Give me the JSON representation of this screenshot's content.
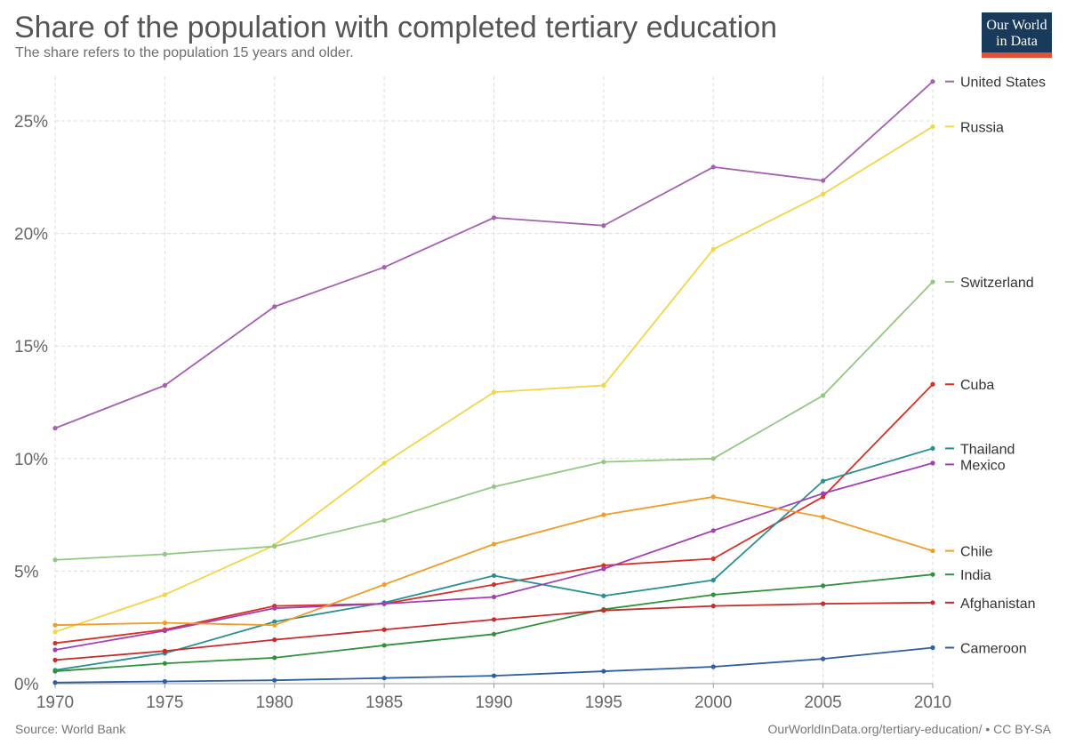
{
  "header": {
    "title": "Share of the population with completed tertiary education",
    "subtitle": "The share refers to the population 15 years and older."
  },
  "logo": {
    "line1": "Our World",
    "line2": "in Data"
  },
  "footer": {
    "source": "Source: World Bank",
    "attribution": "OurWorldInData.org/tertiary-education/ • CC BY-SA"
  },
  "chart_data": {
    "type": "line",
    "title": "Share of the population with completed tertiary education",
    "subtitle": "The share refers to the population 15 years and older.",
    "xlabel": "",
    "ylabel": "",
    "x": [
      1970,
      1975,
      1980,
      1985,
      1990,
      1995,
      2000,
      2005,
      2010
    ],
    "xlim": [
      1970,
      2010
    ],
    "ylim": [
      0,
      27
    ],
    "y_ticks": [
      0,
      5,
      10,
      15,
      20,
      25
    ],
    "y_tick_labels": [
      "0%",
      "5%",
      "10%",
      "15%",
      "20%",
      "25%"
    ],
    "x_tick_labels": [
      "1970",
      "1975",
      "1980",
      "1985",
      "1990",
      "1995",
      "2000",
      "2005",
      "2010"
    ],
    "grid": true,
    "legend": "right",
    "series": [
      {
        "name": "United States",
        "color": "#a561b0",
        "values": [
          11.35,
          13.25,
          16.75,
          18.5,
          20.7,
          20.35,
          22.95,
          22.35,
          26.75
        ]
      },
      {
        "name": "Russia",
        "color": "#f2d649",
        "values": [
          2.3,
          3.95,
          6.15,
          9.8,
          12.95,
          13.25,
          19.3,
          21.75,
          24.75
        ]
      },
      {
        "name": "Switzerland",
        "color": "#90c97f",
        "values": [
          5.5,
          5.75,
          6.1,
          7.25,
          8.75,
          9.85,
          10.0,
          12.8,
          17.85
        ]
      },
      {
        "name": "Cuba",
        "color": "#d73027",
        "values": [
          1.8,
          2.4,
          3.45,
          3.55,
          4.4,
          5.25,
          5.55,
          8.3,
          13.3
        ]
      },
      {
        "name": "Thailand",
        "color": "#2a8f93",
        "values": [
          0.6,
          1.35,
          2.75,
          3.6,
          4.8,
          3.9,
          4.6,
          9.0,
          10.45
        ]
      },
      {
        "name": "Mexico",
        "color": "#a33fb3",
        "values": [
          1.5,
          2.35,
          3.35,
          3.55,
          3.85,
          5.1,
          6.8,
          8.45,
          9.8
        ]
      },
      {
        "name": "Chile",
        "color": "#f09c28",
        "values": [
          2.6,
          2.7,
          2.6,
          4.4,
          6.2,
          7.5,
          8.3,
          7.4,
          5.9
        ]
      },
      {
        "name": "India",
        "color": "#2f9139",
        "values": [
          0.55,
          0.9,
          1.15,
          1.7,
          2.2,
          3.3,
          3.95,
          4.35,
          4.85
        ]
      },
      {
        "name": "Afghanistan",
        "color": "#c82a2a",
        "values": [
          1.05,
          1.45,
          1.95,
          2.4,
          2.85,
          3.25,
          3.45,
          3.55,
          3.6
        ]
      },
      {
        "name": "Cameroon",
        "color": "#2c5ea0",
        "values": [
          0.05,
          0.1,
          0.15,
          0.25,
          0.35,
          0.55,
          0.75,
          1.1,
          1.6
        ]
      }
    ]
  }
}
